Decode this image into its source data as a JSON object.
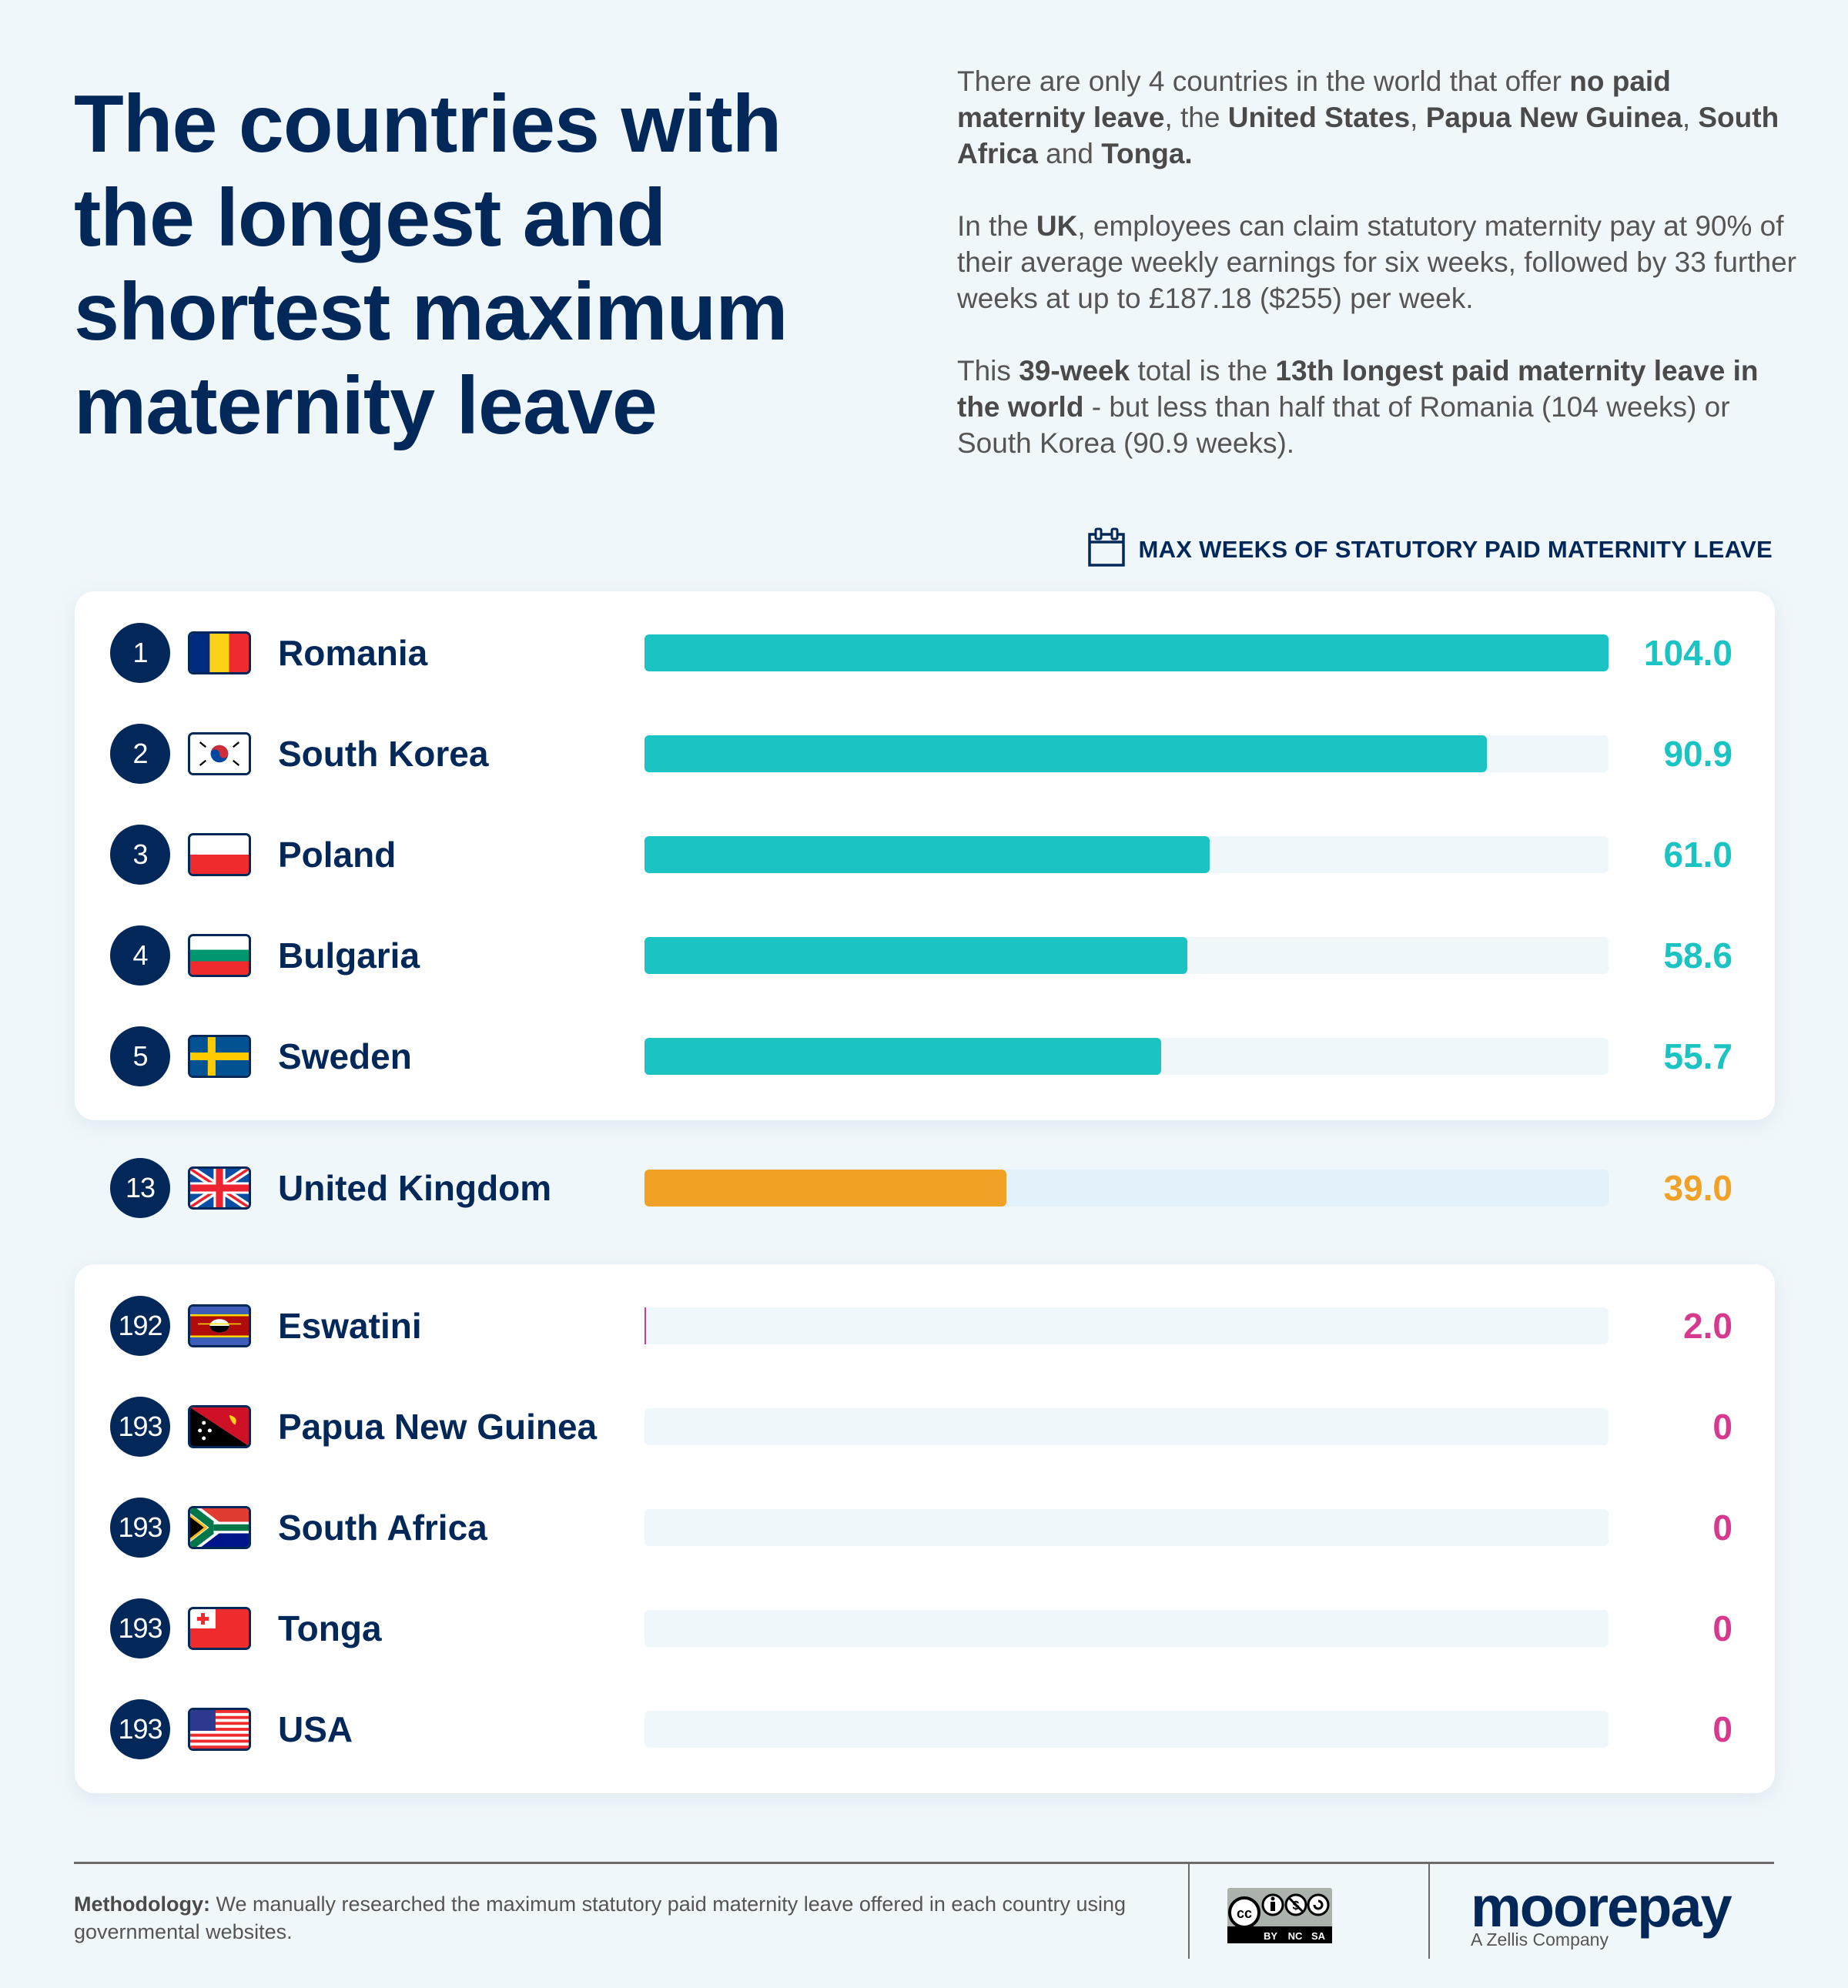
{
  "header": {
    "title": "The countries with the longest and shortest maximum maternity leave",
    "intro": [
      [
        {
          "t": "There are only 4 countries in the world that offer ",
          "b": false
        },
        {
          "t": "no paid maternity leave",
          "b": true
        },
        {
          "t": ", the ",
          "b": false
        },
        {
          "t": "United States",
          "b": true
        },
        {
          "t": ", ",
          "b": false
        },
        {
          "t": "Papua New Guinea",
          "b": true
        },
        {
          "t": ", ",
          "b": false
        },
        {
          "t": "South Africa",
          "b": true
        },
        {
          "t": " and ",
          "b": false
        },
        {
          "t": "Tonga.",
          "b": true
        }
      ],
      [
        {
          "t": "In the ",
          "b": false
        },
        {
          "t": "UK",
          "b": true
        },
        {
          "t": ", employees can claim statutory maternity pay at 90% of their average weekly earnings for six weeks, followed by 33 further weeks at up to £187.18 ($255) per week.",
          "b": false
        }
      ],
      [
        {
          "t": "This ",
          "b": false
        },
        {
          "t": "39-week",
          "b": true
        },
        {
          "t": " total is the ",
          "b": false
        },
        {
          "t": "13th longest paid maternity leave in the world",
          "b": true
        },
        {
          "t": " - but less than half that of Romania (104 weeks) or South Korea (90.9 weeks).",
          "b": false
        }
      ]
    ]
  },
  "legend": {
    "icon": "calendar-icon",
    "label": "MAX WEEKS OF STATUTORY PAID MATERNITY LEAVE"
  },
  "colors": {
    "navy": "#02285a",
    "teal": "#1bc3c3",
    "orange": "#f0a126",
    "pink": "#d63a8e",
    "track": "#eff7fb",
    "background": "#f0f7fb"
  },
  "chart_data": {
    "type": "bar",
    "orientation": "horizontal",
    "title": "The countries with the longest and shortest maximum maternity leave",
    "xlabel": "Max weeks of statutory paid maternity leave",
    "xlim": [
      0,
      104
    ],
    "groups": [
      {
        "name": "longest",
        "color": "#1bc3c3",
        "rows": [
          {
            "rank": "1",
            "country": "Romania",
            "flag": "romania-flag-icon",
            "value": 104.0,
            "label": "104.0"
          },
          {
            "rank": "2",
            "country": "South Korea",
            "flag": "south-korea-flag-icon",
            "value": 90.9,
            "label": "90.9"
          },
          {
            "rank": "3",
            "country": "Poland",
            "flag": "poland-flag-icon",
            "value": 61.0,
            "label": "61.0"
          },
          {
            "rank": "4",
            "country": "Bulgaria",
            "flag": "bulgaria-flag-icon",
            "value": 58.6,
            "label": "58.6"
          },
          {
            "rank": "5",
            "country": "Sweden",
            "flag": "sweden-flag-icon",
            "value": 55.7,
            "label": "55.7"
          }
        ]
      },
      {
        "name": "highlight",
        "color": "#f0a126",
        "rows": [
          {
            "rank": "13",
            "country": "United Kingdom",
            "flag": "uk-flag-icon",
            "value": 39.0,
            "label": "39.0"
          }
        ]
      },
      {
        "name": "shortest",
        "color": "#d63a8e",
        "rows": [
          {
            "rank": "192",
            "country": "Eswatini",
            "flag": "eswatini-flag-icon",
            "value": 2.0,
            "label": "2.0"
          },
          {
            "rank": "193",
            "country": "Papua New Guinea",
            "flag": "png-flag-icon",
            "value": 0,
            "label": "0"
          },
          {
            "rank": "193",
            "country": "South Africa",
            "flag": "south-africa-flag-icon",
            "value": 0,
            "label": "0"
          },
          {
            "rank": "193",
            "country": "Tonga",
            "flag": "tonga-flag-icon",
            "value": 0,
            "label": "0"
          },
          {
            "rank": "193",
            "country": "USA",
            "flag": "usa-flag-icon",
            "value": 0,
            "label": "0"
          }
        ]
      }
    ]
  },
  "footer": {
    "methodology_label": "Methodology:",
    "methodology_text": " We manually researched the maximum statutory paid maternity leave offered in each country using governmental websites.",
    "license": {
      "icon": "creative-commons-icon",
      "labels": [
        "BY",
        "NC",
        "SA"
      ]
    },
    "brand": {
      "name": "moorepay",
      "tagline": "A Zellis Company"
    }
  }
}
